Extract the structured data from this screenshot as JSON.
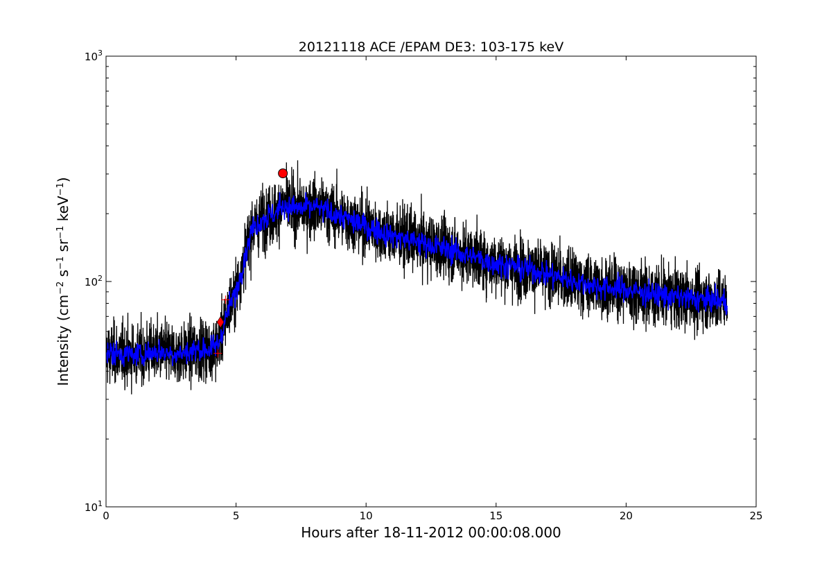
{
  "chart_data": {
    "type": "line",
    "title": "20121118 ACE /EPAM DE3: 103-175 keV",
    "xlabel": "Hours after 18-11-2012 00:00:08.000",
    "ylabel_parts": [
      "Intensity (cm",
      "−2",
      " s",
      "−1",
      " sr",
      "−1",
      " keV",
      "−1",
      ")"
    ],
    "xlim": [
      0,
      25
    ],
    "ylim": [
      10,
      1000
    ],
    "yscale": "log",
    "grid": false,
    "x_ticks": [
      0,
      5,
      10,
      15,
      20,
      25
    ],
    "x_tick_labels": [
      "0",
      "5",
      "10",
      "15",
      "20",
      "25"
    ],
    "y_major_ticks": [
      10,
      100,
      1000
    ],
    "y_tick_labels": [
      {
        "base": "10",
        "exp": "1"
      },
      {
        "base": "10",
        "exp": "2"
      },
      {
        "base": "10",
        "exp": "3"
      }
    ],
    "envelope_x": [
      0,
      0.5,
      1,
      1.5,
      2,
      2.5,
      3,
      3.5,
      4,
      4.3,
      4.5,
      4.7,
      5,
      5.3,
      5.6,
      6,
      6.5,
      6.8,
      7,
      7.5,
      8,
      9,
      10,
      11,
      12,
      13,
      14,
      15,
      16,
      17,
      18,
      19,
      20,
      21,
      22,
      23,
      23.9
    ],
    "envelope_y": [
      48,
      48,
      47,
      48,
      49,
      48,
      48,
      50,
      50,
      52,
      62,
      75,
      90,
      125,
      170,
      190,
      200,
      220,
      215,
      210,
      215,
      195,
      175,
      160,
      150,
      140,
      130,
      120,
      115,
      108,
      100,
      95,
      92,
      88,
      85,
      83,
      82
    ],
    "series": [
      {
        "color": "#000000",
        "noise": 0.22,
        "step_hours": 0.0056
      },
      {
        "color": "#0000ff",
        "noise": 0.09,
        "step_hours": 0.0167
      }
    ],
    "markers": [
      {
        "type": "circle",
        "x": 6.8,
        "y": 302,
        "color": "#ff0000"
      },
      {
        "type": "diamond",
        "x": 4.4,
        "y": 66,
        "color": "#ff0000"
      },
      {
        "type": "plus",
        "x": 4.6,
        "y": 83,
        "color": "#ff0000"
      },
      {
        "type": "plus",
        "x": 4.3,
        "y": 48,
        "color": "#ff0000"
      }
    ]
  }
}
